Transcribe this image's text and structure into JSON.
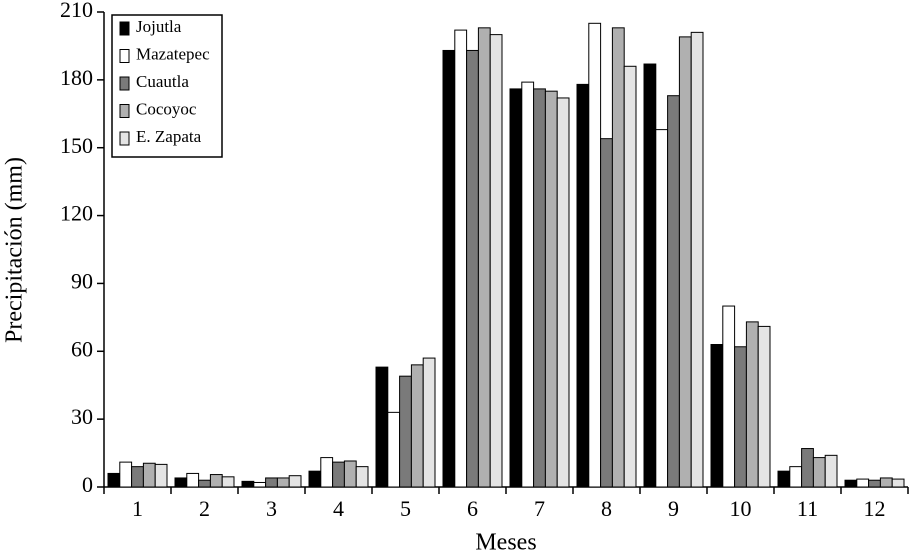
{
  "chart_data": {
    "type": "bar",
    "y_label": "Precipitación (mm)",
    "x_label": "Meses",
    "categories": [
      "1",
      "2",
      "3",
      "4",
      "5",
      "6",
      "7",
      "8",
      "9",
      "10",
      "11",
      "12"
    ],
    "series": [
      {
        "name": "Jojutla",
        "color": "#000000",
        "values": [
          6,
          4,
          2.5,
          7,
          53,
          193,
          176,
          178,
          187,
          63,
          7,
          3
        ]
      },
      {
        "name": "Mazatepec",
        "color": "#ffffff",
        "values": [
          11,
          6,
          2,
          13,
          33,
          202,
          179,
          205,
          158,
          80,
          9,
          3.5
        ]
      },
      {
        "name": "Cuautla",
        "color": "#7a7a7a",
        "values": [
          9,
          3,
          4,
          11,
          49,
          193,
          176,
          154,
          173,
          62,
          17,
          3
        ]
      },
      {
        "name": "Cocoyoc",
        "color": "#b0b0b0",
        "values": [
          10.5,
          5.5,
          4,
          11.5,
          54,
          203,
          175,
          203,
          199,
          73,
          13,
          4
        ]
      },
      {
        "name": "E. Zapata",
        "color": "#e4e4e4",
        "values": [
          10,
          4.5,
          5,
          9,
          57,
          200,
          172,
          186,
          201,
          71,
          14,
          3.5
        ]
      }
    ],
    "ylim": [
      0,
      210
    ],
    "yticks": [
      0,
      30,
      60,
      90,
      120,
      150,
      180,
      210
    ],
    "legend": "top-left"
  }
}
